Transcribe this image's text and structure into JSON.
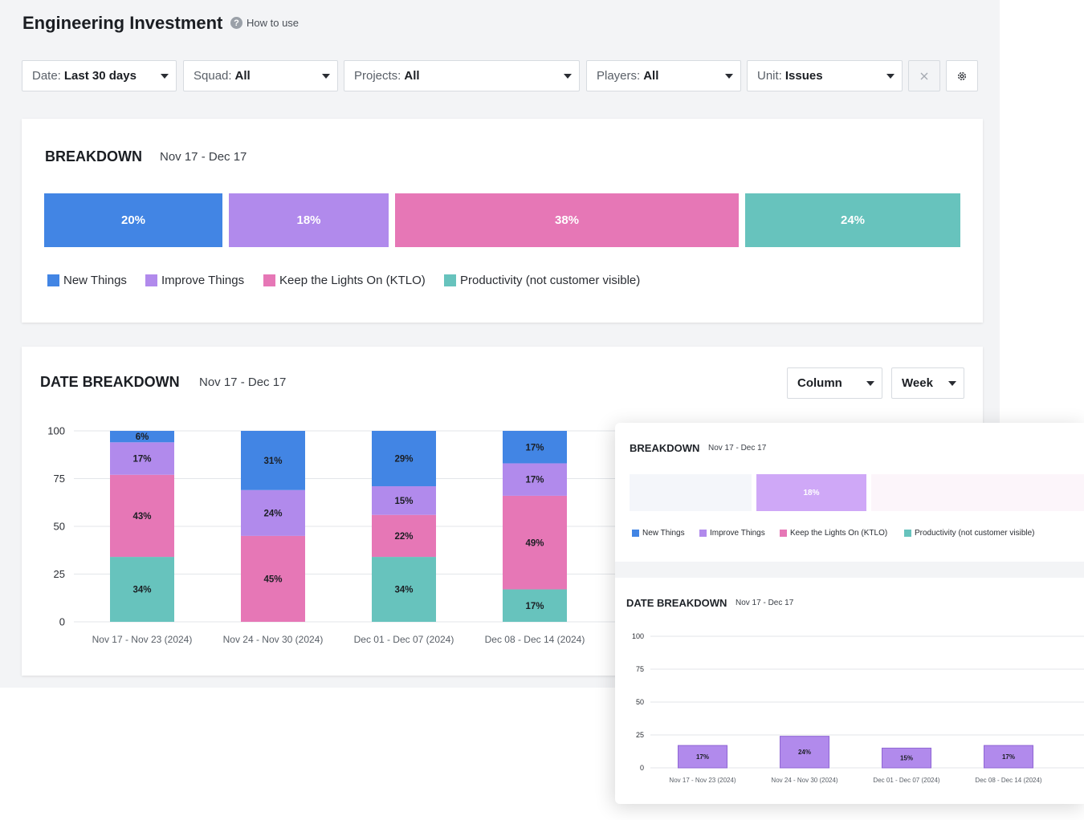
{
  "page": {
    "title": "Engineering Investment",
    "help_label": "How to use",
    "help_icon": "question-circle-icon"
  },
  "filters": [
    {
      "label": "Date:",
      "value": "Last 30 days"
    },
    {
      "label": "Squad:",
      "value": "All"
    },
    {
      "label": "Projects:",
      "value": "All"
    },
    {
      "label": "Players:",
      "value": "All"
    },
    {
      "label": "Unit:",
      "value": "Issues"
    }
  ],
  "toolbar": {
    "clear_icon": "close-icon",
    "settings_icon": "gear-icon"
  },
  "colors": {
    "new": "#4285e4",
    "improve": "#b18aec",
    "ktlo": "#e677b6",
    "productivity": "#67c3bd",
    "bg": "#f3f4f6"
  },
  "breakdown": {
    "title": "BREAKDOWN",
    "range": "Nov 17 - Dec 17",
    "segments": [
      {
        "label": "20%",
        "value": 20,
        "key": "new"
      },
      {
        "label": "18%",
        "value": 18,
        "key": "improve"
      },
      {
        "label": "38%",
        "value": 38,
        "key": "ktlo"
      },
      {
        "label": "24%",
        "value": 24,
        "key": "productivity"
      }
    ],
    "legend": [
      "New Things",
      "Improve Things",
      "Keep the Lights On (KTLO)",
      "Productivity (not customer visible)"
    ]
  },
  "date_breakdown": {
    "title": "DATE BREAKDOWN",
    "range": "Nov 17 - Dec 17",
    "chart_type_label": "Column",
    "interval_label": "Week"
  },
  "chart_data": [
    {
      "type": "bar",
      "stacked": true,
      "categories": [
        "Nov 17 - Nov 23 (2024)",
        "Nov 24 - Nov 30 (2024)",
        "Dec 01 - Dec 07 (2024)",
        "Dec 08 - Dec 14 (2024)"
      ],
      "series": [
        {
          "name": "Productivity (not customer visible)",
          "values": [
            34,
            0,
            34,
            17
          ],
          "color": "#67c3bd"
        },
        {
          "name": "Keep the Lights On (KTLO)",
          "values": [
            43,
            45,
            22,
            49
          ],
          "color": "#e677b6"
        },
        {
          "name": "Improve Things",
          "values": [
            17,
            24,
            15,
            17
          ],
          "color": "#b18aec"
        },
        {
          "name": "New Things",
          "values": [
            6,
            31,
            29,
            17
          ],
          "color": "#4285e4"
        }
      ],
      "yticks": [
        "0",
        "25",
        "50",
        "75",
        "100"
      ],
      "ylim": [
        0,
        100
      ],
      "grid": true
    },
    {
      "type": "bar",
      "categories": [
        "Nov 17 - Nov 23 (2024)",
        "Nov 24 - Nov 30 (2024)",
        "Dec 01 - Dec 07 (2024)",
        "Dec 08 - Dec 14 (2024)"
      ],
      "series": [
        {
          "name": "Improve Things",
          "values": [
            17,
            24,
            15,
            17
          ],
          "color": "#b18aec"
        }
      ],
      "yticks": [
        "0",
        "25",
        "50",
        "75",
        "100"
      ],
      "ylim": [
        0,
        100
      ],
      "grid": true
    }
  ],
  "overlay": {
    "breakdown_title": "BREAKDOWN",
    "breakdown_range": "Nov 17 - Dec 17",
    "highlight_label": "18%",
    "date_title": "DATE BREAKDOWN",
    "date_range": "Nov 17 - Dec 17"
  }
}
